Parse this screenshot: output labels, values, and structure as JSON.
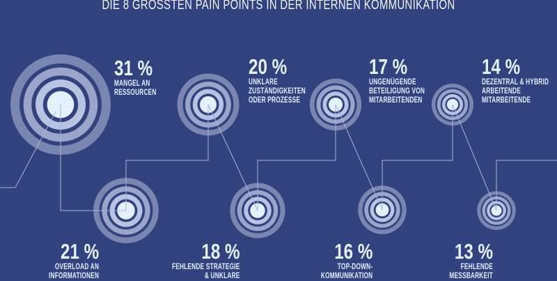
{
  "title": "DIE 8 GROSSTEN PAIN POINTS IN DER INTERNEN KOMMUNIKATION",
  "colors": {
    "background": "#31427e",
    "ring_outer": "#7b86b0",
    "ring_mid": "#9aa5c9",
    "ring_inner": "#b9c4e2",
    "center": "#e4f1fc",
    "line": "#a9b4d8",
    "text": "#e6f1ff"
  },
  "items": [
    {
      "rank": 1,
      "pct": "31 %",
      "desc": [
        "MANGEL AN",
        "RESSOURCEN"
      ]
    },
    {
      "rank": 2,
      "pct": "21 %",
      "desc": [
        "OVERLOAD AN",
        "INFORMATIONEN"
      ]
    },
    {
      "rank": 3,
      "pct": "20 %",
      "desc": [
        "UNKLARE",
        "ZUSTÄNDIGKEITEN",
        "ODER PROZESSE"
      ]
    },
    {
      "rank": 4,
      "pct": "18 %",
      "desc": [
        "FEHLENDE STRATEGIE",
        "& UNKLARE"
      ]
    },
    {
      "rank": 5,
      "pct": "17 %",
      "desc": [
        "UNGENÜGENDE",
        "BETEILIGUNG VON",
        "MITARBEITENDEN"
      ]
    },
    {
      "rank": 6,
      "pct": "16 %",
      "desc": [
        "TOP-DOWN-",
        "KOMMUNIKATION"
      ]
    },
    {
      "rank": 7,
      "pct": "14 %",
      "desc": [
        "DEZENTRAL & HYBRID",
        "ARBEITENDE",
        "MITARBEITENDE"
      ]
    },
    {
      "rank": 8,
      "pct": "13 %",
      "desc": [
        "FEHLENDE",
        "MESSBARKEIT"
      ]
    }
  ],
  "chart_data": {
    "type": "bar",
    "title": "DIE 8 GROSSTEN PAIN POINTS IN DER INTERNEN KOMMUNIKATION",
    "categories": [
      "Mangel an Ressourcen",
      "Overload an Informationen",
      "Unklare Zuständigkeiten oder Prozesse",
      "Fehlende Strategie & unklare ...",
      "Ungenügende Beteiligung von Mitarbeitenden",
      "Top-Down-Kommunikation",
      "Dezentral & hybrid arbeitende Mitarbeitende",
      "Fehlende Messbarkeit"
    ],
    "values": [
      31,
      21,
      20,
      18,
      17,
      16,
      14,
      13
    ],
    "unit": "%",
    "xlabel": "",
    "ylabel": "",
    "encoding": "concentric circle size proportional to percentage",
    "grid": false,
    "legend": "none"
  }
}
